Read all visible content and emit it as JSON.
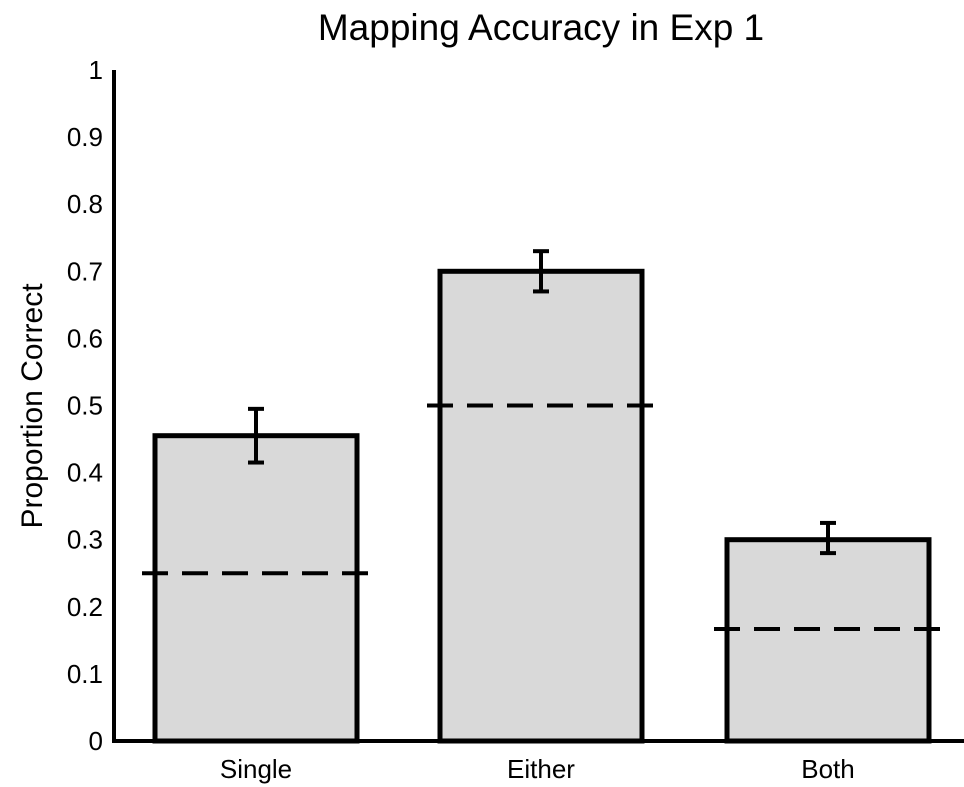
{
  "chart_data": {
    "type": "bar",
    "title": "Mapping Accuracy in Exp 1",
    "xlabel": "",
    "ylabel": "Proportion Correct",
    "ylim": [
      0,
      1
    ],
    "yticks": [
      "0",
      "0.1",
      "0.2",
      "0.3",
      "0.4",
      "0.5",
      "0.6",
      "0.7",
      "0.8",
      "0.9",
      "1"
    ],
    "grid": false,
    "bar_color": "#d9d9d9",
    "categories": [
      "Single",
      "Either",
      "Both"
    ],
    "values": [
      0.455,
      0.7,
      0.3
    ],
    "error_low": [
      0.415,
      0.67,
      0.28
    ],
    "error_high": [
      0.495,
      0.73,
      0.325
    ],
    "chance_levels": [
      0.25,
      0.5,
      0.167
    ]
  }
}
